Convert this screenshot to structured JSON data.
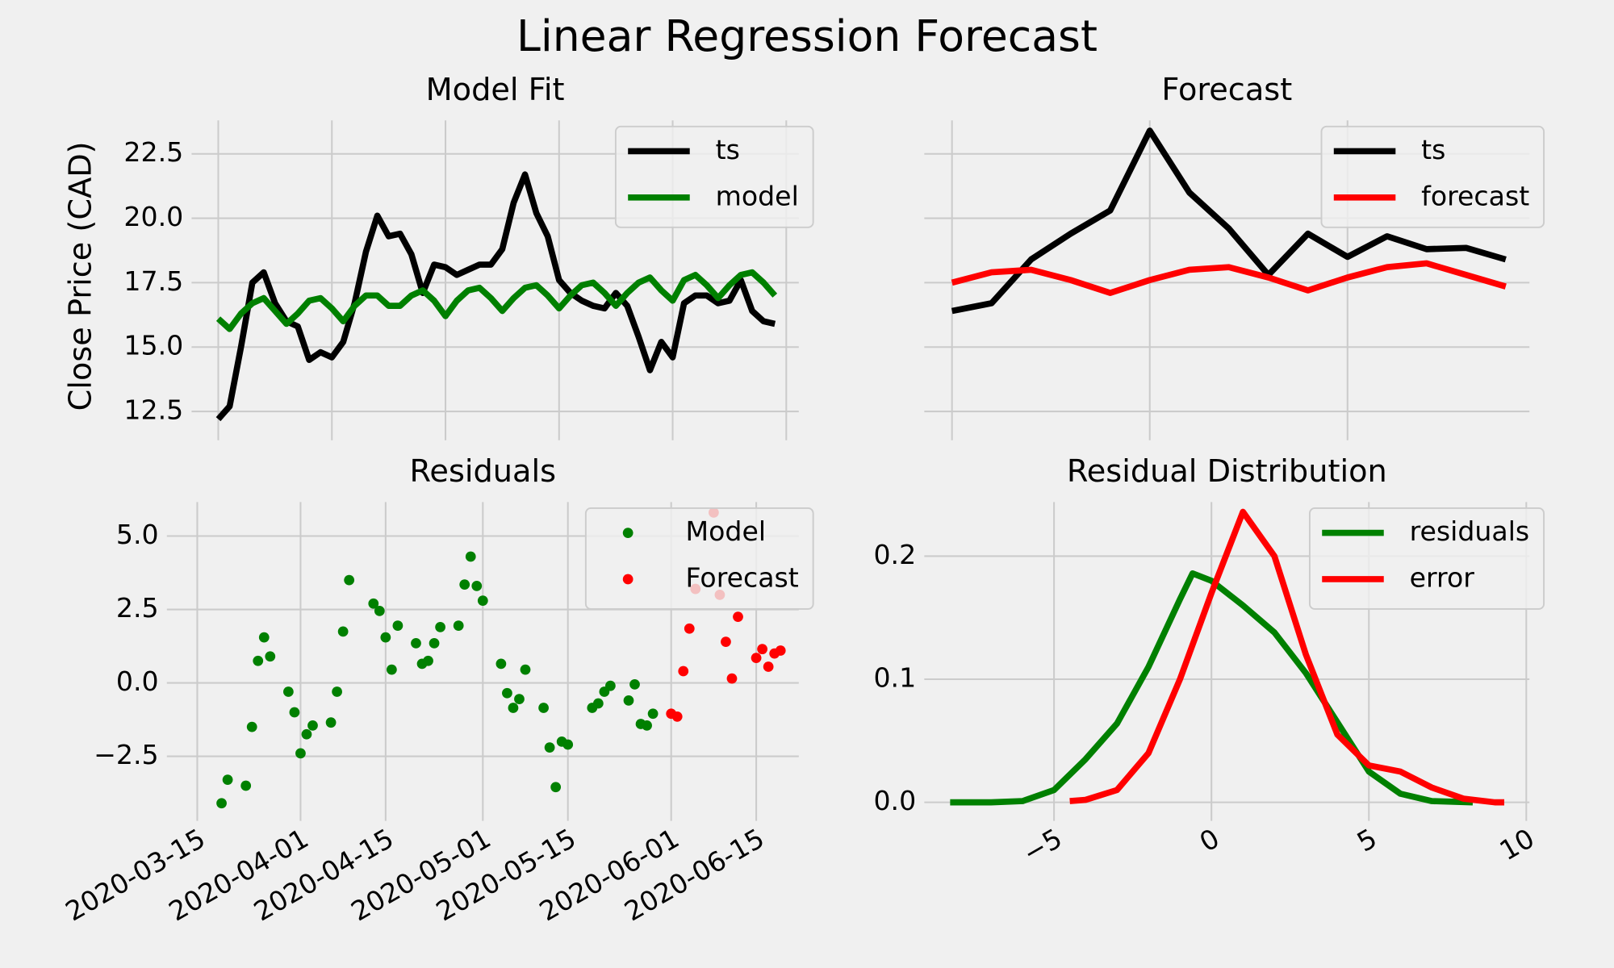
{
  "title": "Linear Regression Forecast",
  "chart_data": [
    {
      "type": "line",
      "title": "Model Fit",
      "ylabel": "Close Price (CAD)",
      "x": [
        0,
        1,
        2,
        3,
        4,
        5,
        6,
        7,
        8,
        9,
        10,
        11,
        12,
        13,
        14,
        15,
        16,
        17,
        18,
        19,
        20,
        21,
        22,
        23,
        24,
        25,
        26,
        27,
        28,
        29,
        30,
        31,
        32,
        33,
        34,
        35,
        36,
        37,
        38,
        39,
        40,
        41,
        42,
        43,
        44,
        45,
        46,
        47,
        48,
        49
      ],
      "xlim": [
        -2.35,
        51.1
      ],
      "xticks": [
        0,
        10,
        20,
        30,
        40,
        50
      ],
      "xtick_labels": false,
      "ylim": [
        11.7,
        23.8
      ],
      "yticks": [
        12.5,
        {
          "value": 15,
          "label": "15.0"
        },
        17.5,
        {
          "value": 20,
          "label": "20.0"
        },
        22.5
      ],
      "grid": true,
      "legend": "upper right",
      "series": [
        {
          "name": "ts",
          "color": "#000000",
          "values": [
            12.2,
            12.7,
            15.0,
            17.5,
            17.9,
            16.7,
            16.0,
            15.8,
            14.5,
            14.8,
            14.6,
            15.2,
            16.7,
            18.7,
            20.1,
            19.3,
            19.4,
            18.6,
            17.1,
            18.2,
            18.1,
            17.8,
            18.0,
            18.2,
            18.2,
            18.8,
            20.6,
            21.7,
            20.2,
            19.3,
            17.6,
            17.1,
            16.8,
            16.6,
            16.5,
            17.1,
            16.6,
            15.4,
            14.1,
            15.2,
            14.6,
            16.7,
            17.0,
            17.0,
            16.7,
            16.8,
            17.6,
            16.4,
            16.0,
            15.9
          ]
        },
        {
          "name": "model",
          "color": "#008000",
          "values": [
            16.1,
            15.7,
            16.3,
            16.7,
            16.9,
            16.4,
            15.9,
            16.3,
            16.8,
            16.9,
            16.5,
            16.0,
            16.6,
            17.0,
            17.0,
            16.6,
            16.6,
            17.0,
            17.2,
            16.8,
            16.2,
            16.8,
            17.2,
            17.3,
            16.9,
            16.4,
            16.9,
            17.3,
            17.4,
            17.0,
            16.5,
            17.0,
            17.4,
            17.5,
            17.1,
            16.6,
            17.1,
            17.5,
            17.7,
            17.2,
            16.8,
            17.6,
            17.8,
            17.4,
            16.9,
            17.4,
            17.8,
            17.9,
            17.5,
            17.0
          ]
        }
      ]
    },
    {
      "type": "line",
      "title": "Forecast",
      "x": [
        0,
        1,
        2,
        3,
        4,
        5,
        6,
        7,
        8,
        9,
        10,
        11,
        12,
        13,
        14
      ],
      "xlim": [
        -0.7,
        14.6
      ],
      "xticks": [
        0,
        5,
        10
      ],
      "xtick_labels": false,
      "ylim": [
        11.7,
        23.8
      ],
      "yticks": [
        12.5,
        15,
        17.5,
        20,
        22.5
      ],
      "ytick_labels": false,
      "grid": true,
      "legend": "upper right",
      "series": [
        {
          "name": "ts",
          "color": "#000000",
          "values": [
            16.4,
            16.7,
            18.4,
            19.4,
            20.3,
            23.4,
            21.0,
            19.6,
            17.8,
            19.4,
            18.5,
            19.3,
            18.8,
            18.85,
            18.4
          ]
        },
        {
          "name": "forecast",
          "color": "#ff0000",
          "values": [
            17.5,
            17.9,
            18.0,
            17.6,
            17.1,
            17.6,
            18.0,
            18.1,
            17.7,
            17.2,
            17.7,
            18.1,
            18.25,
            17.8,
            17.35
          ]
        }
      ]
    },
    {
      "type": "scatter",
      "title": "Residuals",
      "xlim": [
        "2020-03-10",
        "2020-06-22"
      ],
      "xticks": [
        "2020-03-15",
        "2020-04-01",
        "2020-04-15",
        "2020-05-01",
        "2020-05-15",
        "2020-06-01",
        "2020-06-15"
      ],
      "xtick_rotation": 30,
      "ylim": [
        -4.42,
        6.16
      ],
      "yticks": [
        {
          "value": -2.5,
          "label": "−2.5"
        },
        {
          "value": 0,
          "label": "0.0"
        },
        2.5,
        {
          "value": 5,
          "label": "5.0"
        }
      ],
      "grid": true,
      "legend": "upper right",
      "series": [
        {
          "name": "Model",
          "color": "#008000",
          "x": [
            "2020-03-19",
            "2020-03-20",
            "2020-03-23",
            "2020-03-24",
            "2020-03-25",
            "2020-03-26",
            "2020-03-27",
            "2020-03-30",
            "2020-03-31",
            "2020-04-01",
            "2020-04-02",
            "2020-04-03",
            "2020-04-06",
            "2020-04-07",
            "2020-04-08",
            "2020-04-09",
            "2020-04-13",
            "2020-04-14",
            "2020-04-15",
            "2020-04-16",
            "2020-04-17",
            "2020-04-20",
            "2020-04-21",
            "2020-04-22",
            "2020-04-23",
            "2020-04-24",
            "2020-04-27",
            "2020-04-28",
            "2020-04-29",
            "2020-04-30",
            "2020-05-01",
            "2020-05-04",
            "2020-05-05",
            "2020-05-06",
            "2020-05-07",
            "2020-05-08",
            "2020-05-11",
            "2020-05-12",
            "2020-05-13",
            "2020-05-14",
            "2020-05-15",
            "2020-05-19",
            "2020-05-20",
            "2020-05-21",
            "2020-05-22",
            "2020-05-25",
            "2020-05-26",
            "2020-05-27",
            "2020-05-28",
            "2020-05-29"
          ],
          "values": [
            -4.1,
            -3.3,
            -3.5,
            -1.5,
            0.75,
            1.55,
            0.9,
            -0.3,
            -1.0,
            -2.4,
            -1.75,
            -1.45,
            -1.35,
            -0.3,
            1.75,
            3.5,
            2.7,
            2.45,
            1.55,
            0.45,
            1.95,
            1.35,
            0.65,
            0.75,
            1.35,
            1.9,
            1.95,
            3.35,
            4.3,
            3.3,
            2.8,
            0.65,
            -0.35,
            -0.85,
            -0.55,
            0.45,
            -0.85,
            -2.2,
            -3.55,
            -2.0,
            -2.1,
            -0.85,
            -0.7,
            -0.3,
            -0.1,
            -0.6,
            -0.05,
            -1.4,
            -1.45,
            -1.05
          ]
        },
        {
          "name": "Forecast",
          "color": "#ff0000",
          "x": [
            "2020-06-01",
            "2020-06-02",
            "2020-06-03",
            "2020-06-04",
            "2020-06-05",
            "2020-06-08",
            "2020-06-09",
            "2020-06-10",
            "2020-06-11",
            "2020-06-12",
            "2020-06-15",
            "2020-06-16",
            "2020-06-17",
            "2020-06-18",
            "2020-06-19"
          ],
          "values": [
            -1.05,
            -1.15,
            0.4,
            1.85,
            3.2,
            5.8,
            3.0,
            1.4,
            0.15,
            2.25,
            0.85,
            1.15,
            0.55,
            1.0,
            1.1
          ]
        }
      ]
    },
    {
      "type": "line",
      "title": "Residual Distribution",
      "xlim": [
        -9.12,
        10.1
      ],
      "xticks": [
        {
          "value": -5,
          "label": "−5"
        },
        0,
        5,
        10
      ],
      "xtick_rotation": 30,
      "ylim": [
        -0.0084,
        0.244
      ],
      "yticks": [
        {
          "value": 0,
          "label": "0.0"
        },
        0.1,
        0.2
      ],
      "grid": true,
      "legend": "upper right",
      "series": [
        {
          "name": "residuals",
          "color": "#008000",
          "x": [
            -8.3,
            -7,
            -6,
            -5,
            -4,
            -3,
            -2,
            -1,
            -0.6,
            0,
            1,
            2,
            3,
            4,
            5,
            6,
            7,
            8.3
          ],
          "values": [
            0,
            0,
            0.001,
            0.01,
            0.035,
            0.064,
            0.11,
            0.165,
            0.186,
            0.18,
            0.16,
            0.138,
            0.105,
            0.065,
            0.025,
            0.007,
            0.001,
            0
          ]
        },
        {
          "name": "error",
          "color": "#ff0000",
          "x": [
            -4.5,
            -4,
            -3,
            -2,
            -1,
            0,
            1,
            2,
            3,
            4,
            5,
            6,
            7,
            8,
            9,
            9.3
          ],
          "values": [
            0.001,
            0.002,
            0.01,
            0.04,
            0.1,
            0.17,
            0.236,
            0.2,
            0.12,
            0.055,
            0.03,
            0.025,
            0.012,
            0.003,
            0,
            0
          ]
        }
      ]
    }
  ]
}
